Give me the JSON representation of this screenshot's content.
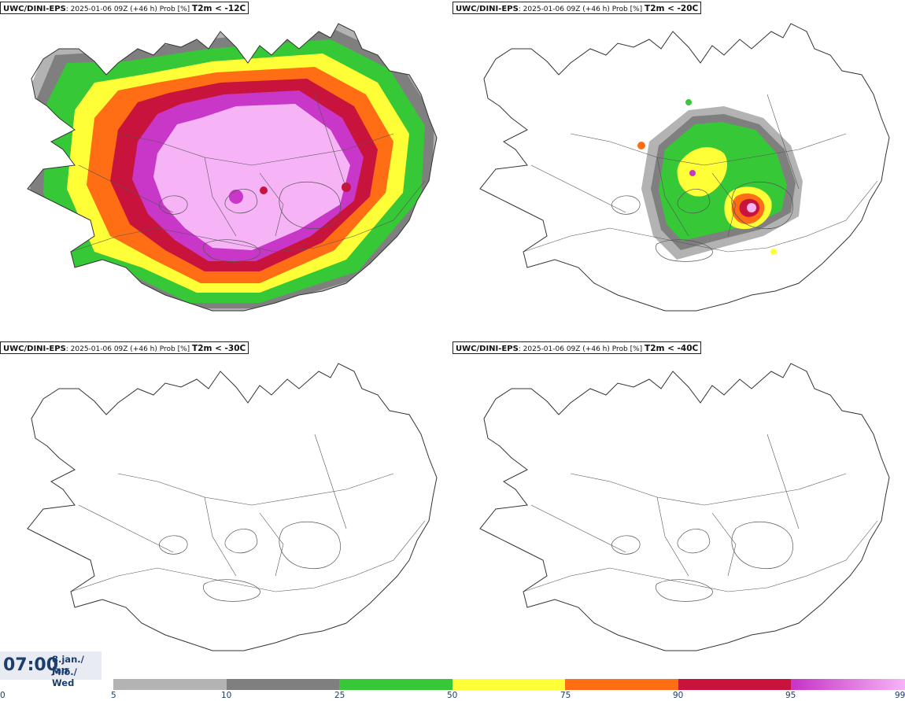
{
  "panels": [
    {
      "model": "UWC/DINI-EPS",
      "info": ": 2025-01-06 09Z (+46 h) Prob [%] ",
      "threshold": "T2m < -12C"
    },
    {
      "model": "UWC/DINI-EPS",
      "info": ": 2025-01-06 09Z (+46 h) Prob [%] ",
      "threshold": "T2m < -20C"
    },
    {
      "model": "UWC/DINI-EPS",
      "info": ": 2025-01-06 09Z (+46 h) Prob [%] ",
      "threshold": "T2m < -30C"
    },
    {
      "model": "UWC/DINI-EPS",
      "info": ": 2025-01-06 09Z (+46 h) Prob [%] ",
      "threshold": "T2m < -40C"
    }
  ],
  "time": {
    "clock": "07:00",
    "date_line": "8.jan./ Jan",
    "day_line": "Mið./ Wed"
  },
  "colorbar": {
    "ticks": [
      "0",
      "5",
      "10",
      "25",
      "50",
      "75",
      "90",
      "95",
      "99"
    ],
    "colors": [
      "#b3b3b3",
      "#7f7f7f",
      "#37c837",
      "#ffff37",
      "#ff6e14",
      "#c8143c",
      "#c837c8",
      "#f6b4f6"
    ]
  }
}
